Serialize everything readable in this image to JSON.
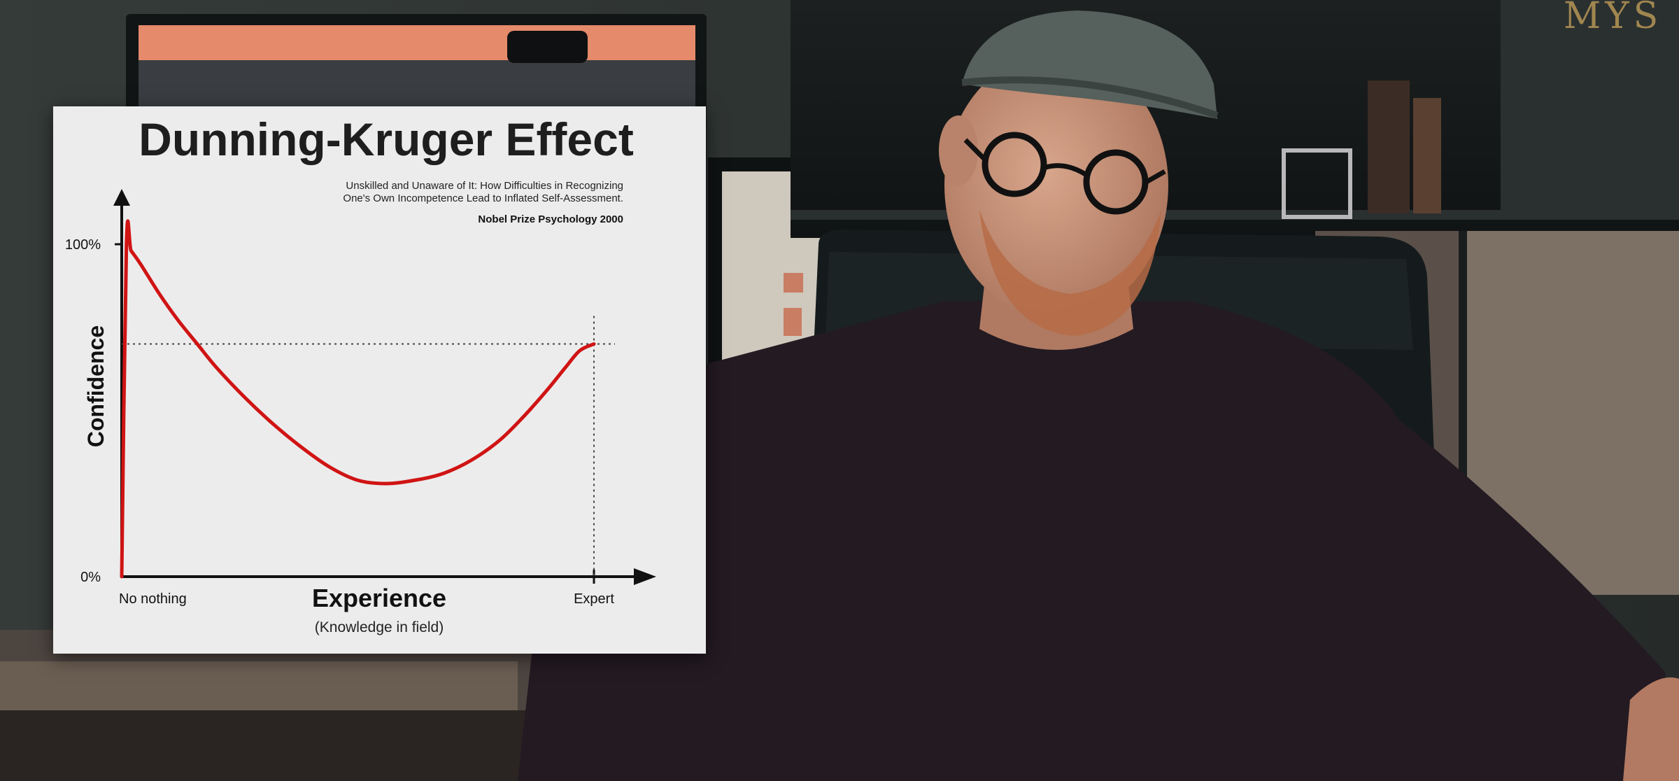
{
  "scene": {
    "shelf_book_spine": "MYS",
    "colors": {
      "wall": "#2a2f2d",
      "shelf": "#16191a",
      "sweater": "#231a22",
      "cap": "#56605c",
      "skin": "#c99479",
      "beard": "#b66b46",
      "chair": "#151b1c",
      "desk": "#6a5d52",
      "curve_red": "#d01414"
    }
  },
  "card": {
    "title": "Dunning-Kruger Effect",
    "subtitle_line1": "Unskilled and Unaware of It: How Difficulties in Recognizing",
    "subtitle_line2": "One's Own Incompetence Lead to Inflated Self-Assessment.",
    "note": "Nobel Prize Psychology  2000"
  },
  "chart_data": {
    "type": "line",
    "title": "Dunning-Kruger Effect",
    "xlabel": "Experience",
    "xlabel_sub": "(Knowledge in field)",
    "ylabel": "Confidence",
    "x_tick_start": "No nothing",
    "x_tick_end": "Expert",
    "y_tick_top": "100%",
    "y_tick_bottom": "0%",
    "xlim": [
      0,
      100
    ],
    "ylim": [
      0,
      100
    ],
    "grid": false,
    "series": [
      {
        "x": [
          0,
          1,
          2,
          4,
          8,
          12,
          16,
          20,
          26,
          32,
          38,
          44,
          50,
          56,
          62,
          68,
          74,
          80,
          85,
          90,
          94,
          97,
          100
        ],
        "values": [
          0,
          100,
          98,
          94,
          85,
          77,
          70,
          63,
          54,
          46,
          39,
          33,
          29,
          28,
          29,
          31,
          35,
          41,
          48,
          56,
          63,
          68,
          70
        ]
      }
    ],
    "reference_point": {
      "x": 100,
      "y": 70
    }
  }
}
